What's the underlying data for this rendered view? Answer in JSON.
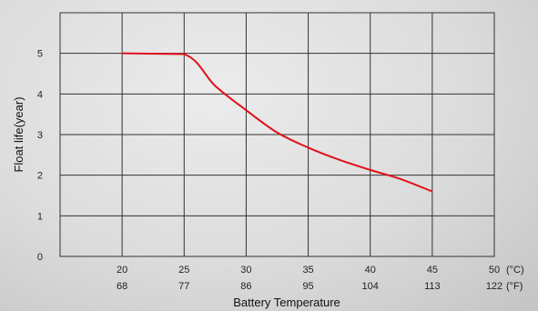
{
  "chart_data": {
    "type": "line",
    "xlabel": "Battery Temperature",
    "ylabel": "Float life(year)",
    "x_unit_c": "(°C)",
    "x_unit_f": "(°F)",
    "x_ticks_c": [
      "20",
      "25",
      "30",
      "35",
      "40",
      "45",
      "50"
    ],
    "x_ticks_f": [
      "68",
      "77",
      "86",
      "95",
      "104",
      "113",
      "122"
    ],
    "y_ticks": [
      "0",
      "1",
      "2",
      "3",
      "4",
      "5"
    ],
    "xlim": [
      15,
      50
    ],
    "ylim": [
      0,
      6
    ],
    "grid": true,
    "series": [
      {
        "color": "#e0111b",
        "x": [
          20,
          25,
          27.5,
          30,
          32.5,
          35,
          37.5,
          40,
          42.5,
          45
        ],
        "y": [
          5.0,
          4.98,
          4.2,
          3.6,
          3.05,
          2.68,
          2.38,
          2.13,
          1.9,
          1.6
        ]
      }
    ]
  }
}
